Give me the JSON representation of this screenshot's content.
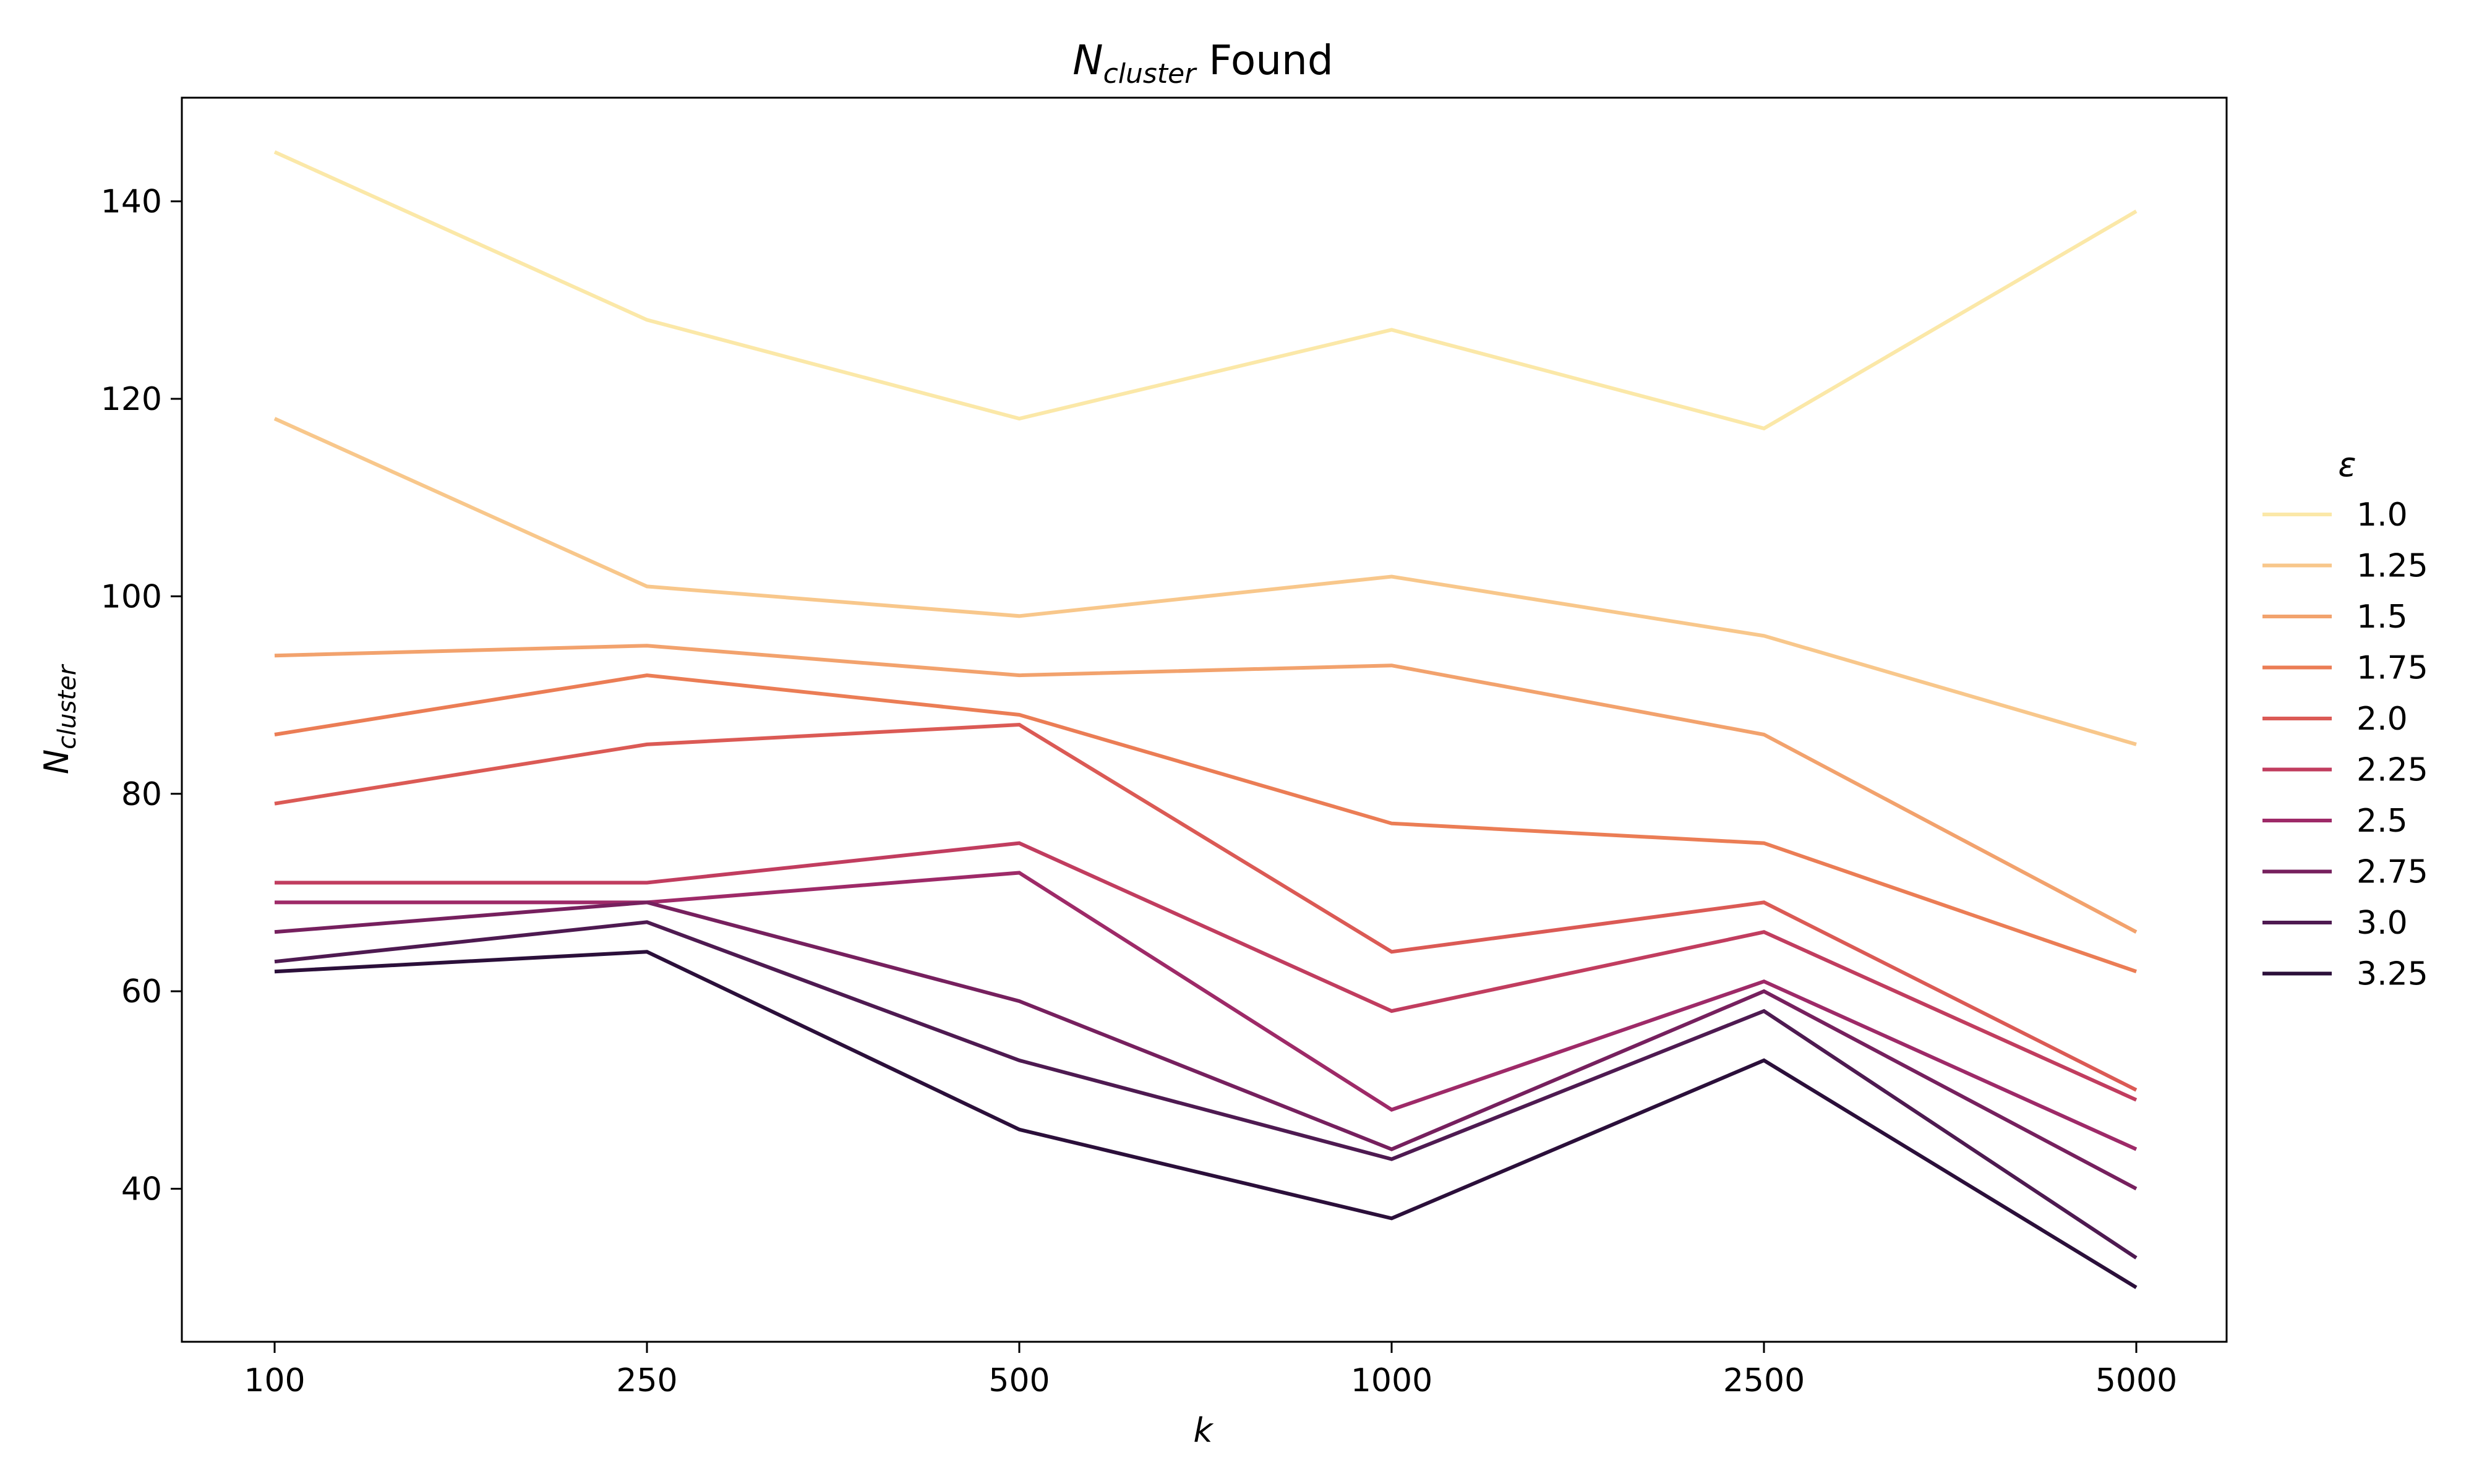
{
  "chart_data": {
    "type": "line",
    "title": {
      "symbol": "N",
      "subscript": "cluster",
      "suffix": " Found"
    },
    "xlabel": "k",
    "ylabel": {
      "symbol": "N",
      "subscript": "cluster"
    },
    "x_scale": "categorical",
    "categories": [
      "100",
      "250",
      "500",
      "1000",
      "2500",
      "5000"
    ],
    "ylim": [
      24.5,
      150.5
    ],
    "yticks": [
      40,
      60,
      80,
      100,
      120,
      140
    ],
    "grid": false,
    "legend": {
      "title": "ε",
      "placement": "right, outside plot"
    },
    "series": [
      {
        "name": "1.0",
        "color": "#fbe8a8",
        "values": [
          145,
          128,
          118,
          127,
          117,
          139
        ]
      },
      {
        "name": "1.25",
        "color": "#f8c78b",
        "values": [
          118,
          101,
          98,
          102,
          96,
          85
        ]
      },
      {
        "name": "1.5",
        "color": "#f2a26d",
        "values": [
          94,
          95,
          92,
          93,
          86,
          66
        ]
      },
      {
        "name": "1.75",
        "color": "#eb7d55",
        "values": [
          86,
          92,
          88,
          77,
          75,
          62
        ]
      },
      {
        "name": "2.0",
        "color": "#db5a55",
        "values": [
          79,
          85,
          87,
          64,
          69,
          50
        ]
      },
      {
        "name": "2.25",
        "color": "#c13d5f",
        "values": [
          71,
          71,
          75,
          58,
          66,
          49
        ]
      },
      {
        "name": "2.5",
        "color": "#9e2a68",
        "values": [
          69,
          69,
          72,
          48,
          61,
          44
        ]
      },
      {
        "name": "2.75",
        "color": "#76205e",
        "values": [
          66,
          69,
          59,
          44,
          60,
          40
        ]
      },
      {
        "name": "3.0",
        "color": "#4e1a51",
        "values": [
          63,
          67,
          53,
          43,
          58,
          33
        ]
      },
      {
        "name": "3.25",
        "color": "#2b0f3a",
        "values": [
          62,
          64,
          46,
          37,
          53,
          30
        ]
      }
    ]
  }
}
